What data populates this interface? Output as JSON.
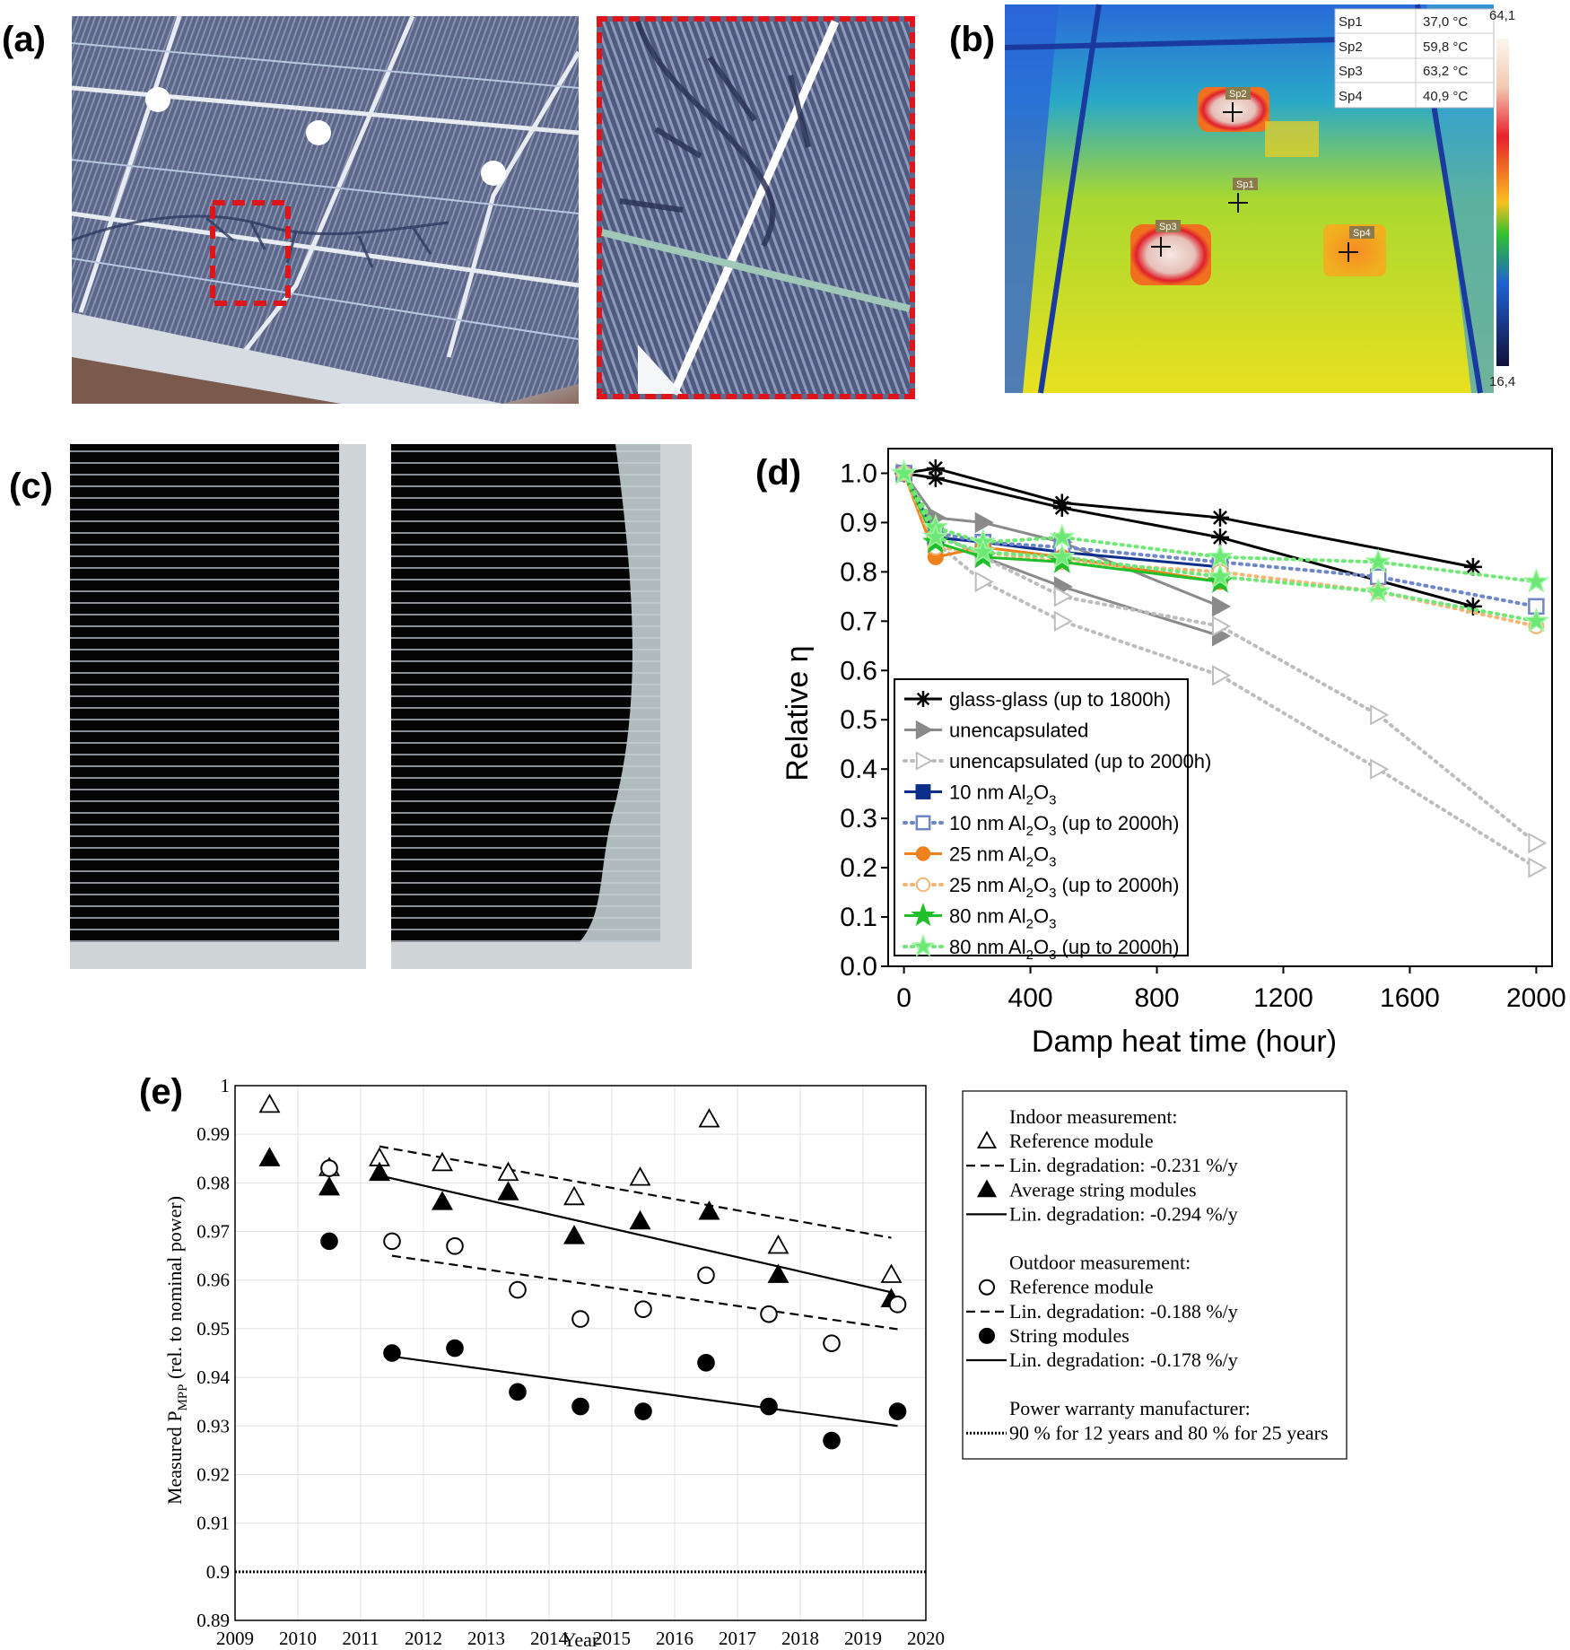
{
  "panels": {
    "a": "(a)",
    "b": "(b)",
    "c": "(c)",
    "d": "(d)",
    "e": "(e)"
  },
  "thermal": {
    "table": [
      {
        "label": "Sp1",
        "value": "37,0 °C"
      },
      {
        "label": "Sp2",
        "value": "59,8 °C"
      },
      {
        "label": "Sp3",
        "value": "63,2 °C"
      },
      {
        "label": "Sp4",
        "value": "40,9 °C"
      }
    ],
    "scale_max": "64,1",
    "scale_min": "16,4",
    "spots": [
      "Sp2",
      "Sp1",
      "Sp3",
      "Sp4"
    ]
  },
  "chart_data": [
    {
      "id": "d",
      "type": "line",
      "xlabel": "Damp heat time (hour)",
      "ylabel": "Relative η",
      "xlim": [
        -50,
        2050
      ],
      "ylim": [
        0,
        1.05
      ],
      "xticks": [
        "0",
        "400",
        "800",
        "1200",
        "1600",
        "2000"
      ],
      "xtick_values": [
        0,
        400,
        800,
        1200,
        1600,
        2000
      ],
      "yticks": [
        "0.0",
        "0.1",
        "0.2",
        "0.3",
        "0.4",
        "0.5",
        "0.6",
        "0.7",
        "0.8",
        "0.9",
        "1.0"
      ],
      "ytick_values": [
        0,
        0.1,
        0.2,
        0.3,
        0.4,
        0.5,
        0.6,
        0.7,
        0.8,
        0.9,
        1.0
      ],
      "grid": false,
      "legend_position": "bottom-left",
      "series": [
        {
          "name": "glass-glass (up to 1800h)",
          "label": "glass-glass (up to 1800h)",
          "color": "#000000",
          "marker": "asterisk",
          "dash": "solid",
          "lines": [
            {
              "x": [
                0,
                100,
                500,
                1000,
                1800
              ],
              "y": [
                1.0,
                1.01,
                0.94,
                0.91,
                0.81
              ]
            },
            {
              "x": [
                0,
                100,
                500,
                1000,
                1800
              ],
              "y": [
                1.0,
                0.99,
                0.93,
                0.87,
                0.73
              ]
            }
          ]
        },
        {
          "name": "unencapsulated",
          "label": "unencapsulated",
          "color": "#8a8a8a",
          "marker": "tri-right-filled",
          "dash": "solid",
          "lines": [
            {
              "x": [
                0,
                100,
                250,
                500,
                1000
              ],
              "y": [
                1.0,
                0.91,
                0.9,
                0.86,
                0.73
              ]
            },
            {
              "x": [
                0,
                100,
                250,
                500,
                1000
              ],
              "y": [
                1.0,
                0.88,
                0.83,
                0.77,
                0.67
              ]
            }
          ]
        },
        {
          "name": "unencapsulated (up to 2000h)",
          "label": "unencapsulated (up to 2000h)",
          "color": "#bdbdbd",
          "marker": "tri-right-open",
          "dash": "dotted",
          "lines": [
            {
              "x": [
                0,
                100,
                250,
                500,
                1000,
                1500,
                2000
              ],
              "y": [
                1.0,
                0.88,
                0.83,
                0.75,
                0.69,
                0.51,
                0.25
              ]
            },
            {
              "x": [
                0,
                100,
                250,
                500,
                1000,
                1500,
                2000
              ],
              "y": [
                1.0,
                0.86,
                0.78,
                0.7,
                0.59,
                0.4,
                0.2
              ]
            }
          ]
        },
        {
          "name": "10 nm Al2O3",
          "label": "10 nm Al",
          "sub": "2",
          "tail": "O",
          "sub2": "3",
          "after": "",
          "color": "#0b2e8a",
          "marker": "square-filled",
          "dash": "solid",
          "lines": [
            {
              "x": [
                0,
                100,
                250,
                500,
                1000
              ],
              "y": [
                1.0,
                0.87,
                0.86,
                0.84,
                0.81
              ]
            }
          ]
        },
        {
          "name": "10 nm Al2O3 (up to 2000h)",
          "label": "10 nm Al",
          "sub": "2",
          "tail": "O",
          "sub2": "3",
          "after": " (up to 2000h)",
          "color": "#6f86c9",
          "marker": "square-open",
          "dash": "dotted",
          "lines": [
            {
              "x": [
                0,
                100,
                250,
                500,
                1000,
                1500,
                2000
              ],
              "y": [
                1.0,
                0.88,
                0.86,
                0.85,
                0.82,
                0.79,
                0.73
              ]
            }
          ]
        },
        {
          "name": "25 nm Al2O3",
          "label": "25 nm Al",
          "sub": "2",
          "tail": "O",
          "sub2": "3",
          "after": "",
          "color": "#f0821e",
          "marker": "circle-filled",
          "dash": "solid",
          "lines": [
            {
              "x": [
                0,
                100,
                250,
                500,
                1000
              ],
              "y": [
                1.0,
                0.83,
                0.85,
                0.83,
                0.78
              ]
            }
          ]
        },
        {
          "name": "25 nm Al2O3 (up to 2000h)",
          "label": "25 nm Al",
          "sub": "2",
          "tail": "O",
          "sub2": "3",
          "after": " (up to 2000h)",
          "color": "#f5b574",
          "marker": "circle-open",
          "dash": "dotted",
          "lines": [
            {
              "x": [
                0,
                100,
                250,
                500,
                1000,
                1500,
                2000
              ],
              "y": [
                1.0,
                0.85,
                0.84,
                0.82,
                0.8,
                0.76,
                0.69
              ]
            }
          ]
        },
        {
          "name": "80 nm Al2O3",
          "label": "80 nm Al",
          "sub": "2",
          "tail": "O",
          "sub2": "3",
          "after": "",
          "color": "#1fbf2a",
          "marker": "star-filled",
          "dash": "solid",
          "lines": [
            {
              "x": [
                0,
                100,
                250,
                500,
                1000
              ],
              "y": [
                1.0,
                0.86,
                0.83,
                0.82,
                0.78
              ]
            }
          ]
        },
        {
          "name": "80 nm Al2O3 (up to 2000h)",
          "label": "80 nm Al",
          "sub": "2",
          "tail": "O",
          "sub2": "3",
          "after": " (up to 2000h)",
          "color": "#6ee874",
          "marker": "star-filled-light",
          "dash": "dotted",
          "lines": [
            {
              "x": [
                0,
                100,
                250,
                500,
                1000,
                1500,
                2000
              ],
              "y": [
                1.0,
                0.89,
                0.86,
                0.87,
                0.83,
                0.82,
                0.78
              ]
            },
            {
              "x": [
                0,
                100,
                250,
                500,
                1000,
                1500,
                2000
              ],
              "y": [
                1.0,
                0.87,
                0.84,
                0.83,
                0.79,
                0.76,
                0.7
              ]
            }
          ]
        }
      ]
    },
    {
      "id": "e",
      "type": "scatter",
      "xlabel": "Year",
      "ylabel": "Measured P",
      "ylabel_sub": "MPP",
      "ylabel_tail": " (rel. to nominal power)",
      "xlim": [
        2009,
        2020
      ],
      "ylim": [
        0.89,
        1.0
      ],
      "xticks": [
        "2009",
        "2010",
        "2011",
        "2012",
        "2013",
        "2014",
        "2015",
        "2016",
        "2017",
        "2018",
        "2019",
        "2020"
      ],
      "xtick_values": [
        2009,
        2010,
        2011,
        2012,
        2013,
        2014,
        2015,
        2016,
        2017,
        2018,
        2019,
        2020
      ],
      "yticks": [
        "1",
        "0.99",
        "0.98",
        "0.97",
        "0.96",
        "0.95",
        "0.94",
        "0.93",
        "0.92",
        "0.91",
        "0.9",
        "0.89"
      ],
      "ytick_values": [
        1.0,
        0.99,
        0.98,
        0.97,
        0.96,
        0.95,
        0.94,
        0.93,
        0.92,
        0.91,
        0.9,
        0.89
      ],
      "grid": true,
      "legend_position": "right, outside",
      "series": [
        {
          "name": "Reference module (indoor)",
          "marker": "triangle-open",
          "x": [
            2009.55,
            2010.5,
            2011.3,
            2012.3,
            2013.35,
            2014.4,
            2015.45,
            2016.55,
            2017.65,
            2019.45
          ],
          "y": [
            0.996,
            0.983,
            0.985,
            0.984,
            0.982,
            0.977,
            0.981,
            0.993,
            0.967,
            0.961
          ]
        },
        {
          "name": "Average string modules",
          "marker": "triangle-filled",
          "x": [
            2009.55,
            2010.5,
            2011.3,
            2012.3,
            2013.35,
            2014.4,
            2015.45,
            2016.55,
            2017.65,
            2019.45
          ],
          "y": [
            0.985,
            0.979,
            0.982,
            0.976,
            0.978,
            0.969,
            0.972,
            0.974,
            0.961,
            0.956
          ]
        },
        {
          "name": "Reference module (outdoor)",
          "marker": "circle-open",
          "x": [
            2010.5,
            2011.5,
            2012.5,
            2013.5,
            2014.5,
            2015.5,
            2016.5,
            2017.5,
            2018.5,
            2019.55
          ],
          "y": [
            0.983,
            0.968,
            0.967,
            0.958,
            0.952,
            0.954,
            0.961,
            0.953,
            0.947,
            0.955
          ]
        },
        {
          "name": "String modules",
          "marker": "circle-filled",
          "x": [
            2010.5,
            2011.5,
            2012.5,
            2013.5,
            2014.5,
            2015.5,
            2016.5,
            2017.5,
            2018.5,
            2019.55
          ],
          "y": [
            0.968,
            0.945,
            0.946,
            0.937,
            0.934,
            0.933,
            0.943,
            0.934,
            0.927,
            0.933
          ]
        }
      ],
      "trend_lines": [
        {
          "name": "Lin. degradation: -0.231 %/y",
          "style": "dashed",
          "x": [
            2011.3,
            2019.45
          ],
          "y": [
            0.9875,
            0.9687
          ]
        },
        {
          "name": "Lin. degradation: -0.294 %/y",
          "style": "solid",
          "x": [
            2011.3,
            2019.45
          ],
          "y": [
            0.9815,
            0.9575
          ]
        },
        {
          "name": "Lin. degradation: -0.188 %/y",
          "style": "dashed",
          "x": [
            2011.5,
            2019.55
          ],
          "y": [
            0.965,
            0.9499
          ]
        },
        {
          "name": "Lin. degradation: -0.178 %/y",
          "style": "solid",
          "x": [
            2011.5,
            2019.55
          ],
          "y": [
            0.9443,
            0.93
          ]
        }
      ],
      "warranty_line": {
        "style": "dotted",
        "y": 0.9
      },
      "legend": [
        {
          "kind": "heading",
          "text": "Indoor measurement:"
        },
        {
          "kind": "triangle-open",
          "text": "Reference module"
        },
        {
          "kind": "dashed",
          "text": "Lin. degradation: -0.231 %/y"
        },
        {
          "kind": "triangle-filled",
          "text": "Average string modules"
        },
        {
          "kind": "solid",
          "text": "Lin. degradation: -0.294 %/y"
        },
        {
          "kind": "spacer",
          "text": ""
        },
        {
          "kind": "heading",
          "text": "Outdoor measurement:"
        },
        {
          "kind": "circle-open",
          "text": "Reference module"
        },
        {
          "kind": "dashed",
          "text": "Lin. degradation: -0.188 %/y"
        },
        {
          "kind": "circle-filled",
          "text": "String modules"
        },
        {
          "kind": "solid",
          "text": "Lin. degradation: -0.178 %/y"
        },
        {
          "kind": "spacer",
          "text": ""
        },
        {
          "kind": "heading",
          "text": "Power warranty manufacturer:"
        },
        {
          "kind": "dotted",
          "text": "90 % for 12 years and 80 % for 25 years"
        }
      ]
    }
  ]
}
